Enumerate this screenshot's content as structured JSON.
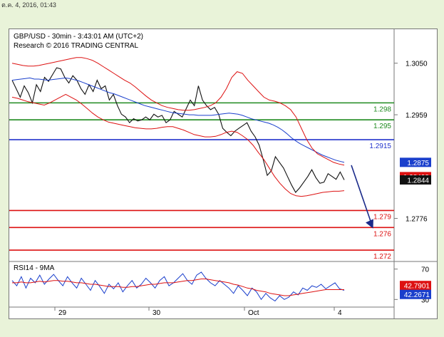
{
  "stamp": "ต.ค. 4, 2016, 01:43",
  "header": {
    "line1": "GBP/USD - 30min - 3:43:01 AM (UTC+2)",
    "line2": "Research © 2016 TRADING CENTRAL"
  },
  "chart_data": [
    {
      "type": "line",
      "title": "GBP/USD - 30min",
      "y_ticks": [
        "1.3050",
        "1.2959",
        "1.2776"
      ],
      "ylim": [
        1.27,
        1.311
      ],
      "x_ticks": [
        "29",
        "30",
        "Oct",
        "4"
      ],
      "levels": [
        {
          "label": "1.298",
          "value": 1.298,
          "color": "#1f8a1f"
        },
        {
          "label": "1.295",
          "value": 1.295,
          "color": "#1f8a1f"
        },
        {
          "label": "1.2915",
          "value": 1.2915,
          "color": "#2233cc"
        },
        {
          "label": "1.279",
          "value": 1.279,
          "color": "#dd1111"
        },
        {
          "label": "1.276",
          "value": 1.276,
          "color": "#dd1111"
        },
        {
          "label": "1.272",
          "value": 1.272,
          "color": "#dd1111"
        }
      ],
      "price_tags": [
        {
          "label": "1.2875",
          "value": 1.2875,
          "color": "#1a3fcc"
        },
        {
          "label": "1.28498",
          "value": 1.28498,
          "color": "#dd1111"
        },
        {
          "label": "1.2844",
          "value": 1.2844,
          "color": "#111111"
        }
      ],
      "forecast_arrow": {
        "from": 1.287,
        "to": 1.276
      },
      "series": [
        {
          "color": "#111111",
          "values": [
            1.302,
            1.3005,
            1.299,
            1.301,
            1.2998,
            1.298,
            1.3012,
            1.3,
            1.3025,
            1.3018,
            1.303,
            1.3042,
            1.304,
            1.3025,
            1.3015,
            1.3028,
            1.302,
            1.3005,
            1.2995,
            1.3012,
            1.3,
            1.302,
            1.3005,
            1.301,
            1.2985,
            1.2995,
            1.2975,
            1.296,
            1.2955,
            1.2945,
            1.2952,
            1.2948,
            1.295,
            1.2955,
            1.295,
            1.296,
            1.2955,
            1.2958,
            1.2945,
            1.295,
            1.2965,
            1.296,
            1.2955,
            1.297,
            1.2985,
            1.2975,
            1.301,
            1.2985,
            1.2975,
            1.2968,
            1.2972,
            1.296,
            1.2935,
            1.2928,
            1.2922,
            1.293,
            1.2935,
            1.294,
            1.2945,
            1.293,
            1.292,
            1.2905,
            1.288,
            1.2852,
            1.286,
            1.2885,
            1.2875,
            1.2865,
            1.285,
            1.2835,
            1.2822,
            1.283,
            1.284,
            1.285,
            1.2862,
            1.2848,
            1.2838,
            1.284,
            1.2855,
            1.285,
            1.2845,
            1.2858,
            1.2844
          ]
        },
        {
          "color": "#1a3fcc",
          "values": [
            1.302,
            1.3021,
            1.3022,
            1.3023,
            1.3024,
            1.3022,
            1.3022,
            1.3021,
            1.302,
            1.3021,
            1.3022,
            1.3023,
            1.3024,
            1.3023,
            1.3021,
            1.3019,
            1.3016,
            1.3013,
            1.301,
            1.3007,
            1.3004,
            1.3001,
            1.2998,
            1.2996,
            1.2993,
            1.299,
            1.2987,
            1.2984,
            1.2981,
            1.2978,
            1.2975,
            1.2973,
            1.2971,
            1.2969,
            1.2967,
            1.2965,
            1.2963,
            1.2962,
            1.2961,
            1.296,
            1.2959,
            1.2959,
            1.2958,
            1.2958,
            1.2958,
            1.2958,
            1.2959,
            1.296,
            1.2961,
            1.2962,
            1.2961,
            1.296,
            1.2958,
            1.2955,
            1.2952,
            1.295,
            1.2948,
            1.2946,
            1.2944,
            1.2941,
            1.2937,
            1.2932,
            1.2926,
            1.2919,
            1.2913,
            1.2908,
            1.2904,
            1.29,
            1.2896,
            1.2892,
            1.2888,
            1.2885,
            1.2882,
            1.2879,
            1.2877,
            1.2875
          ]
        },
        {
          "color": "#dd1111",
          "values": [
            1.305,
            1.3048,
            1.3046,
            1.3045,
            1.3045,
            1.3046,
            1.3048,
            1.305,
            1.3052,
            1.3054,
            1.3056,
            1.3058,
            1.306,
            1.306,
            1.3058,
            1.3055,
            1.305,
            1.3044,
            1.3038,
            1.3032,
            1.3026,
            1.302,
            1.3015,
            1.3008,
            1.3,
            1.2992,
            1.2985,
            1.298,
            1.2975,
            1.2972,
            1.297,
            1.2968,
            1.2967,
            1.2967,
            1.2968,
            1.297,
            1.2972,
            1.2975,
            1.298,
            1.299,
            1.3005,
            1.3025,
            1.3035,
            1.3032,
            1.302,
            1.301,
            1.3,
            1.299,
            1.2985,
            1.2983,
            1.298,
            1.2975,
            1.2968,
            1.2955,
            1.2935,
            1.2915,
            1.29,
            1.289,
            1.2885,
            1.288,
            1.2875,
            1.2872,
            1.287
          ]
        },
        {
          "color": "#dd1111",
          "values": [
            1.299,
            1.2988,
            1.2985,
            1.2982,
            1.298,
            1.2978,
            1.2976,
            1.298,
            1.2985,
            1.299,
            1.2995,
            1.299,
            1.2985,
            1.2978,
            1.297,
            1.2962,
            1.2955,
            1.295,
            1.2946,
            1.2944,
            1.2942,
            1.294,
            1.2938,
            1.2936,
            1.2935,
            1.2934,
            1.2934,
            1.2935,
            1.2937,
            1.2938,
            1.2938,
            1.2935,
            1.2932,
            1.2928,
            1.2924,
            1.2922,
            1.292,
            1.292,
            1.2921,
            1.2924,
            1.2928,
            1.293,
            1.2928,
            1.2922,
            1.2915,
            1.2905,
            1.2892,
            1.288,
            1.2865,
            1.285,
            1.2838,
            1.2828,
            1.282,
            1.2816,
            1.2815,
            1.2816,
            1.2818,
            1.282,
            1.2822,
            1.2823,
            1.2824,
            1.2824,
            1.2825
          ]
        }
      ]
    },
    {
      "type": "line",
      "title": "RSI14 - 9MA",
      "y_ticks": [
        "70",
        "30"
      ],
      "ylim": [
        20,
        80
      ],
      "price_tags": [
        {
          "label": "42.7901",
          "value": 42.7901,
          "color": "#dd1111"
        },
        {
          "label": "42.2671",
          "value": 42.2671,
          "color": "#1a3fcc"
        }
      ],
      "series": [
        {
          "color": "#1a3fcc",
          "values": [
            55,
            48,
            60,
            45,
            58,
            52,
            62,
            50,
            57,
            63,
            55,
            48,
            60,
            52,
            45,
            58,
            50,
            42,
            55,
            47,
            38,
            50,
            44,
            52,
            40,
            48,
            55,
            45,
            50,
            58,
            52,
            45,
            55,
            60,
            48,
            52,
            58,
            64,
            55,
            50,
            62,
            66,
            58,
            52,
            48,
            55,
            50,
            45,
            38,
            48,
            42,
            35,
            45,
            40,
            30,
            38,
            32,
            28,
            35,
            30,
            33,
            40,
            36,
            45,
            42,
            48,
            46,
            50,
            44,
            48,
            52,
            44,
            42
          ]
        },
        {
          "color": "#dd1111",
          "values": [
            52,
            52,
            53,
            52,
            52,
            53,
            54,
            53,
            54,
            55,
            55,
            54,
            54,
            53,
            52,
            52,
            51,
            50,
            50,
            49,
            48,
            47,
            47,
            47,
            46,
            46,
            47,
            47,
            48,
            49,
            50,
            50,
            51,
            52,
            52,
            52,
            53,
            54,
            55,
            55,
            56,
            57,
            57,
            56,
            55,
            54,
            53,
            52,
            50,
            49,
            47,
            45,
            44,
            42,
            41,
            40,
            38,
            37,
            36,
            35,
            35,
            36,
            37,
            38,
            39,
            40,
            41,
            42,
            43,
            43,
            43,
            43,
            43
          ]
        }
      ]
    }
  ]
}
